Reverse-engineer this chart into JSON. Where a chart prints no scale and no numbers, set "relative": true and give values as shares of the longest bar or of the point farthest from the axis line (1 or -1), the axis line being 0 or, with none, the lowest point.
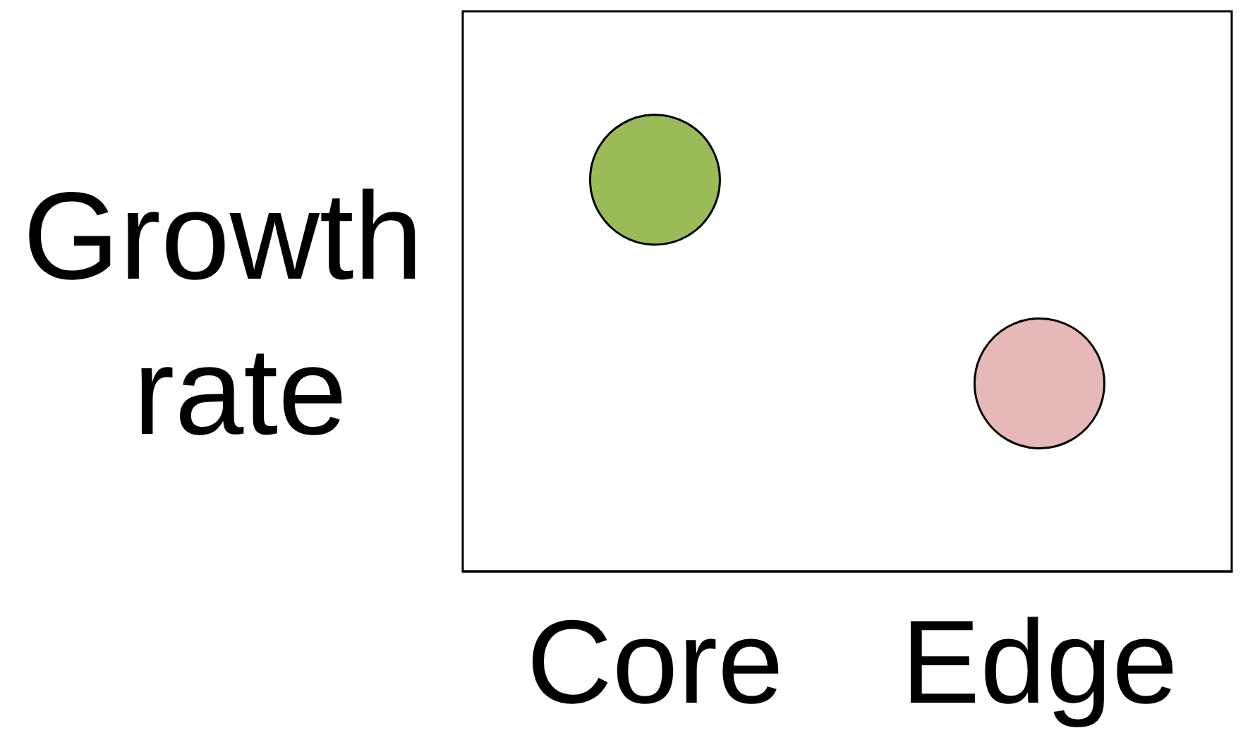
{
  "chart_data": {
    "type": "scatter",
    "ylabel": "Growth rate",
    "categories": [
      "Core",
      "Edge"
    ],
    "values": [
      1,
      0.48
    ],
    "colors": [
      "#9bbb59",
      "#e6b9b8"
    ],
    "relative": true,
    "marker": "circle"
  }
}
